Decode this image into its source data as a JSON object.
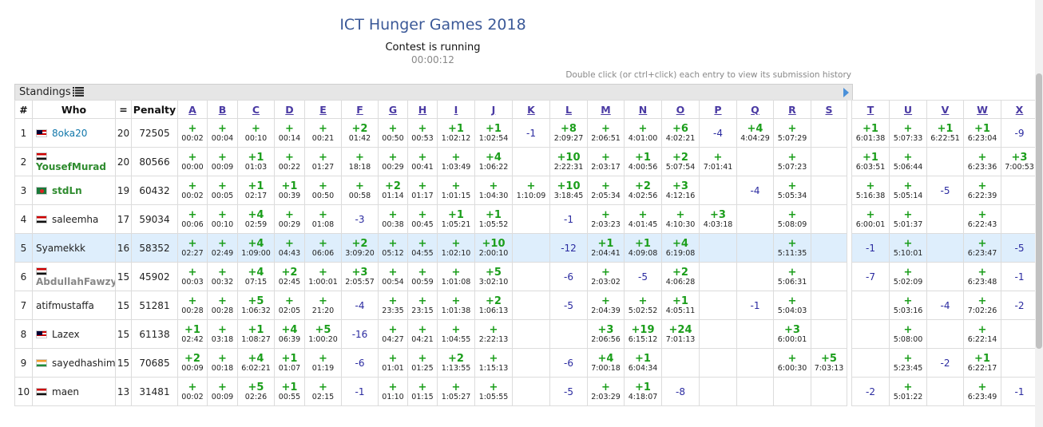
{
  "title": "ICT Hunger Games 2018",
  "status": "Contest is running",
  "timer": "00:00:12",
  "hint": "Double click (or ctrl+click) each entry to view its submission history",
  "panel": {
    "label": "Standings"
  },
  "columns": {
    "rank": "#",
    "who": "Who",
    "solved": "=",
    "penalty": "Penalty"
  },
  "problems": [
    "A",
    "B",
    "C",
    "D",
    "E",
    "F",
    "G",
    "H",
    "I",
    "J",
    "K",
    "L",
    "M",
    "N",
    "O",
    "P",
    "Q",
    "R",
    "S",
    "T",
    "U",
    "V",
    "W",
    "X"
  ],
  "rows": [
    {
      "rank": "1",
      "name": "8oka20",
      "name_style": "teal",
      "flag": "my",
      "solved": "20",
      "penalty": "72505",
      "cells": [
        {
          "r": "+",
          "t": "00:02"
        },
        {
          "r": "+",
          "t": "00:04"
        },
        {
          "r": "+",
          "t": "00:10"
        },
        {
          "r": "+",
          "t": "00:14"
        },
        {
          "r": "+",
          "t": "00:21"
        },
        {
          "r": "+2",
          "t": "01:42"
        },
        {
          "r": "+",
          "t": "00:50"
        },
        {
          "r": "+",
          "t": "00:53"
        },
        {
          "r": "+1",
          "t": "1:02:12"
        },
        {
          "r": "+1",
          "t": "1:02:54"
        },
        {
          "r": "-1",
          "t": ""
        },
        {
          "r": "+8",
          "t": "2:09:27"
        },
        {
          "r": "+",
          "t": "2:06:51"
        },
        {
          "r": "+",
          "t": "4:01:00"
        },
        {
          "r": "+6",
          "t": "4:02:21"
        },
        {
          "r": "-4",
          "t": ""
        },
        {
          "r": "+4",
          "t": "4:04:29"
        },
        {
          "r": "+",
          "t": "5:07:29"
        },
        {
          "r": "",
          "t": ""
        },
        {
          "r": "+1",
          "t": "6:01:38"
        },
        {
          "r": "+",
          "t": "5:07:33"
        },
        {
          "r": "+1",
          "t": "6:22:51"
        },
        {
          "r": "+1",
          "t": "6:23:04"
        },
        {
          "r": "-9",
          "t": ""
        }
      ]
    },
    {
      "rank": "2",
      "name": "YousefMurad",
      "name_style": "green",
      "flag": "eg",
      "solved": "20",
      "penalty": "80566",
      "cells": [
        {
          "r": "+",
          "t": "00:00"
        },
        {
          "r": "+",
          "t": "00:09"
        },
        {
          "r": "+1",
          "t": "01:03"
        },
        {
          "r": "+",
          "t": "00:22"
        },
        {
          "r": "+",
          "t": "01:27"
        },
        {
          "r": "+",
          "t": "18:18"
        },
        {
          "r": "+",
          "t": "00:29"
        },
        {
          "r": "+",
          "t": "00:41"
        },
        {
          "r": "+",
          "t": "1:03:49"
        },
        {
          "r": "+4",
          "t": "1:06:22"
        },
        {
          "r": "",
          "t": ""
        },
        {
          "r": "+10",
          "t": "2:22:31"
        },
        {
          "r": "+",
          "t": "2:03:17"
        },
        {
          "r": "+1",
          "t": "4:00:56"
        },
        {
          "r": "+2",
          "t": "5:07:54"
        },
        {
          "r": "+",
          "t": "7:01:41"
        },
        {
          "r": "",
          "t": ""
        },
        {
          "r": "+",
          "t": "5:07:23"
        },
        {
          "r": "",
          "t": ""
        },
        {
          "r": "+1",
          "t": "6:03:51"
        },
        {
          "r": "+",
          "t": "5:06:44"
        },
        {
          "r": "",
          "t": ""
        },
        {
          "r": "+",
          "t": "6:23:36"
        },
        {
          "r": "+3",
          "t": "7:00:53"
        }
      ]
    },
    {
      "rank": "3",
      "name": "stdLn",
      "name_style": "green",
      "flag": "bd",
      "solved": "19",
      "penalty": "60432",
      "cells": [
        {
          "r": "+",
          "t": "00:02"
        },
        {
          "r": "+",
          "t": "00:05"
        },
        {
          "r": "+1",
          "t": "02:17"
        },
        {
          "r": "+1",
          "t": "00:39"
        },
        {
          "r": "+",
          "t": "00:50"
        },
        {
          "r": "+",
          "t": "00:58"
        },
        {
          "r": "+2",
          "t": "01:14"
        },
        {
          "r": "+",
          "t": "01:17"
        },
        {
          "r": "+",
          "t": "1:01:15"
        },
        {
          "r": "+",
          "t": "1:04:30"
        },
        {
          "r": "+",
          "t": "1:10:09"
        },
        {
          "r": "+10",
          "t": "3:18:45"
        },
        {
          "r": "+",
          "t": "2:05:34"
        },
        {
          "r": "+2",
          "t": "4:02:56"
        },
        {
          "r": "+3",
          "t": "4:12:16"
        },
        {
          "r": "",
          "t": ""
        },
        {
          "r": "-4",
          "t": ""
        },
        {
          "r": "+",
          "t": "5:05:34"
        },
        {
          "r": "",
          "t": ""
        },
        {
          "r": "+",
          "t": "5:16:38"
        },
        {
          "r": "+",
          "t": "5:05:14"
        },
        {
          "r": "-5",
          "t": ""
        },
        {
          "r": "+",
          "t": "6:22:39"
        },
        {
          "r": "",
          "t": ""
        }
      ]
    },
    {
      "rank": "4",
      "name": "saleemha",
      "name_style": "plain",
      "flag": "eg",
      "solved": "17",
      "penalty": "59034",
      "cells": [
        {
          "r": "+",
          "t": "00:06"
        },
        {
          "r": "+",
          "t": "00:10"
        },
        {
          "r": "+4",
          "t": "02:59"
        },
        {
          "r": "+",
          "t": "00:29"
        },
        {
          "r": "+",
          "t": "01:08"
        },
        {
          "r": "-3",
          "t": ""
        },
        {
          "r": "+",
          "t": "00:38"
        },
        {
          "r": "+",
          "t": "00:45"
        },
        {
          "r": "+1",
          "t": "1:05:21"
        },
        {
          "r": "+1",
          "t": "1:05:52"
        },
        {
          "r": "",
          "t": ""
        },
        {
          "r": "-1",
          "t": ""
        },
        {
          "r": "+",
          "t": "2:03:23"
        },
        {
          "r": "+",
          "t": "4:01:45"
        },
        {
          "r": "+",
          "t": "4:10:30"
        },
        {
          "r": "+3",
          "t": "4:03:18"
        },
        {
          "r": "",
          "t": ""
        },
        {
          "r": "+",
          "t": "5:08:09"
        },
        {
          "r": "",
          "t": ""
        },
        {
          "r": "+",
          "t": "6:00:01"
        },
        {
          "r": "+",
          "t": "5:01:37"
        },
        {
          "r": "",
          "t": ""
        },
        {
          "r": "+",
          "t": "6:22:43"
        },
        {
          "r": "",
          "t": ""
        }
      ]
    },
    {
      "rank": "5",
      "name": "Syamekkk",
      "name_style": "plain",
      "flag": "",
      "solved": "16",
      "penalty": "58352",
      "highlight": true,
      "cells": [
        {
          "r": "+",
          "t": "02:27"
        },
        {
          "r": "+",
          "t": "02:49"
        },
        {
          "r": "+4",
          "t": "1:09:00"
        },
        {
          "r": "+",
          "t": "04:43"
        },
        {
          "r": "+",
          "t": "06:06"
        },
        {
          "r": "+2",
          "t": "3:09:20"
        },
        {
          "r": "+",
          "t": "05:12"
        },
        {
          "r": "+",
          "t": "04:55"
        },
        {
          "r": "+",
          "t": "1:02:10"
        },
        {
          "r": "+10",
          "t": "2:00:10"
        },
        {
          "r": "",
          "t": ""
        },
        {
          "r": "-12",
          "t": ""
        },
        {
          "r": "+1",
          "t": "2:04:41"
        },
        {
          "r": "+1",
          "t": "4:09:08"
        },
        {
          "r": "+4",
          "t": "6:19:08"
        },
        {
          "r": "",
          "t": ""
        },
        {
          "r": "",
          "t": ""
        },
        {
          "r": "+",
          "t": "5:11:35"
        },
        {
          "r": "",
          "t": ""
        },
        {
          "r": "-1",
          "t": ""
        },
        {
          "r": "+",
          "t": "5:10:01"
        },
        {
          "r": "",
          "t": ""
        },
        {
          "r": "+",
          "t": "6:23:47"
        },
        {
          "r": "-5",
          "t": ""
        }
      ]
    },
    {
      "rank": "6",
      "name": "AbdullahFawzy",
      "name_style": "gray",
      "flag": "eg",
      "solved": "15",
      "penalty": "45902",
      "cells": [
        {
          "r": "+",
          "t": "00:03"
        },
        {
          "r": "+",
          "t": "00:32"
        },
        {
          "r": "+4",
          "t": "07:15"
        },
        {
          "r": "+2",
          "t": "02:45"
        },
        {
          "r": "+",
          "t": "1:00:01"
        },
        {
          "r": "+3",
          "t": "2:05:57"
        },
        {
          "r": "+",
          "t": "00:54"
        },
        {
          "r": "+",
          "t": "00:59"
        },
        {
          "r": "+",
          "t": "1:01:08"
        },
        {
          "r": "+5",
          "t": "3:02:10"
        },
        {
          "r": "",
          "t": ""
        },
        {
          "r": "-6",
          "t": ""
        },
        {
          "r": "+",
          "t": "2:03:02"
        },
        {
          "r": "-5",
          "t": ""
        },
        {
          "r": "+2",
          "t": "4:06:28"
        },
        {
          "r": "",
          "t": ""
        },
        {
          "r": "",
          "t": ""
        },
        {
          "r": "+",
          "t": "5:06:31"
        },
        {
          "r": "",
          "t": ""
        },
        {
          "r": "-7",
          "t": ""
        },
        {
          "r": "+",
          "t": "5:02:09"
        },
        {
          "r": "",
          "t": ""
        },
        {
          "r": "+",
          "t": "6:23:48"
        },
        {
          "r": "-1",
          "t": ""
        }
      ]
    },
    {
      "rank": "7",
      "name": "atifmustaffa",
      "name_style": "plain",
      "flag": "",
      "solved": "15",
      "penalty": "51281",
      "cells": [
        {
          "r": "+",
          "t": "00:28"
        },
        {
          "r": "+",
          "t": "00:28"
        },
        {
          "r": "+5",
          "t": "1:06:32"
        },
        {
          "r": "+",
          "t": "02:05"
        },
        {
          "r": "+",
          "t": "21:20"
        },
        {
          "r": "-4",
          "t": ""
        },
        {
          "r": "+",
          "t": "23:35"
        },
        {
          "r": "+",
          "t": "23:15"
        },
        {
          "r": "+",
          "t": "1:01:38"
        },
        {
          "r": "+2",
          "t": "1:06:13"
        },
        {
          "r": "",
          "t": ""
        },
        {
          "r": "-5",
          "t": ""
        },
        {
          "r": "+",
          "t": "2:04:39"
        },
        {
          "r": "+",
          "t": "5:02:52"
        },
        {
          "r": "+1",
          "t": "4:05:11"
        },
        {
          "r": "",
          "t": ""
        },
        {
          "r": "-1",
          "t": ""
        },
        {
          "r": "+",
          "t": "5:04:03"
        },
        {
          "r": "",
          "t": ""
        },
        {
          "r": "",
          "t": ""
        },
        {
          "r": "+",
          "t": "5:03:16"
        },
        {
          "r": "-4",
          "t": ""
        },
        {
          "r": "+",
          "t": "7:02:26"
        },
        {
          "r": "-2",
          "t": ""
        }
      ]
    },
    {
      "rank": "8",
      "name": "Lazex",
      "name_style": "plain",
      "flag": "my",
      "solved": "15",
      "penalty": "61138",
      "cells": [
        {
          "r": "+1",
          "t": "02:42"
        },
        {
          "r": "+",
          "t": "03:18"
        },
        {
          "r": "+1",
          "t": "1:08:27"
        },
        {
          "r": "+4",
          "t": "06:39"
        },
        {
          "r": "+5",
          "t": "1:00:20"
        },
        {
          "r": "-16",
          "t": ""
        },
        {
          "r": "+",
          "t": "04:27"
        },
        {
          "r": "+",
          "t": "04:21"
        },
        {
          "r": "+",
          "t": "1:04:55"
        },
        {
          "r": "+",
          "t": "2:22:13"
        },
        {
          "r": "",
          "t": ""
        },
        {
          "r": "",
          "t": ""
        },
        {
          "r": "+3",
          "t": "2:06:56"
        },
        {
          "r": "+19",
          "t": "6:15:12"
        },
        {
          "r": "+24",
          "t": "7:01:13"
        },
        {
          "r": "",
          "t": ""
        },
        {
          "r": "",
          "t": ""
        },
        {
          "r": "+3",
          "t": "6:00:01"
        },
        {
          "r": "",
          "t": ""
        },
        {
          "r": "",
          "t": ""
        },
        {
          "r": "+",
          "t": "5:08:00"
        },
        {
          "r": "",
          "t": ""
        },
        {
          "r": "+",
          "t": "6:22:14"
        },
        {
          "r": "",
          "t": ""
        }
      ]
    },
    {
      "rank": "9",
      "name": "sayedhashim",
      "name_style": "plain",
      "flag": "in",
      "solved": "15",
      "penalty": "70685",
      "cells": [
        {
          "r": "+2",
          "t": "00:09"
        },
        {
          "r": "+",
          "t": "00:18"
        },
        {
          "r": "+4",
          "t": "6:02:21"
        },
        {
          "r": "+1",
          "t": "01:07"
        },
        {
          "r": "+",
          "t": "01:19"
        },
        {
          "r": "-6",
          "t": ""
        },
        {
          "r": "+",
          "t": "01:01"
        },
        {
          "r": "+",
          "t": "01:25"
        },
        {
          "r": "+2",
          "t": "1:13:55"
        },
        {
          "r": "+",
          "t": "1:15:13"
        },
        {
          "r": "",
          "t": ""
        },
        {
          "r": "-6",
          "t": ""
        },
        {
          "r": "+4",
          "t": "7:00:18"
        },
        {
          "r": "+1",
          "t": "6:04:34"
        },
        {
          "r": "",
          "t": ""
        },
        {
          "r": "",
          "t": ""
        },
        {
          "r": "",
          "t": ""
        },
        {
          "r": "+",
          "t": "6:00:30"
        },
        {
          "r": "+5",
          "t": "7:03:13"
        },
        {
          "r": "",
          "t": ""
        },
        {
          "r": "+",
          "t": "5:23:45"
        },
        {
          "r": "-2",
          "t": ""
        },
        {
          "r": "+1",
          "t": "6:22:17"
        },
        {
          "r": "",
          "t": ""
        }
      ]
    },
    {
      "rank": "10",
      "name": "maen",
      "name_style": "plain",
      "flag": "eg",
      "solved": "13",
      "penalty": "31481",
      "cells": [
        {
          "r": "+",
          "t": "00:02"
        },
        {
          "r": "+",
          "t": "00:09"
        },
        {
          "r": "+5",
          "t": "02:26"
        },
        {
          "r": "+1",
          "t": "00:55"
        },
        {
          "r": "+",
          "t": "02:15"
        },
        {
          "r": "-1",
          "t": ""
        },
        {
          "r": "+",
          "t": "01:10"
        },
        {
          "r": "+",
          "t": "01:15"
        },
        {
          "r": "+",
          "t": "1:05:27"
        },
        {
          "r": "+",
          "t": "1:05:55"
        },
        {
          "r": "",
          "t": ""
        },
        {
          "r": "-5",
          "t": ""
        },
        {
          "r": "+",
          "t": "2:03:29"
        },
        {
          "r": "+1",
          "t": "4:18:07"
        },
        {
          "r": "-8",
          "t": ""
        },
        {
          "r": "",
          "t": ""
        },
        {
          "r": "",
          "t": ""
        },
        {
          "r": "",
          "t": ""
        },
        {
          "r": "",
          "t": ""
        },
        {
          "r": "-2",
          "t": ""
        },
        {
          "r": "+",
          "t": "5:01:22"
        },
        {
          "r": "",
          "t": ""
        },
        {
          "r": "+",
          "t": "6:23:49"
        },
        {
          "r": "-1",
          "t": ""
        }
      ]
    }
  ]
}
